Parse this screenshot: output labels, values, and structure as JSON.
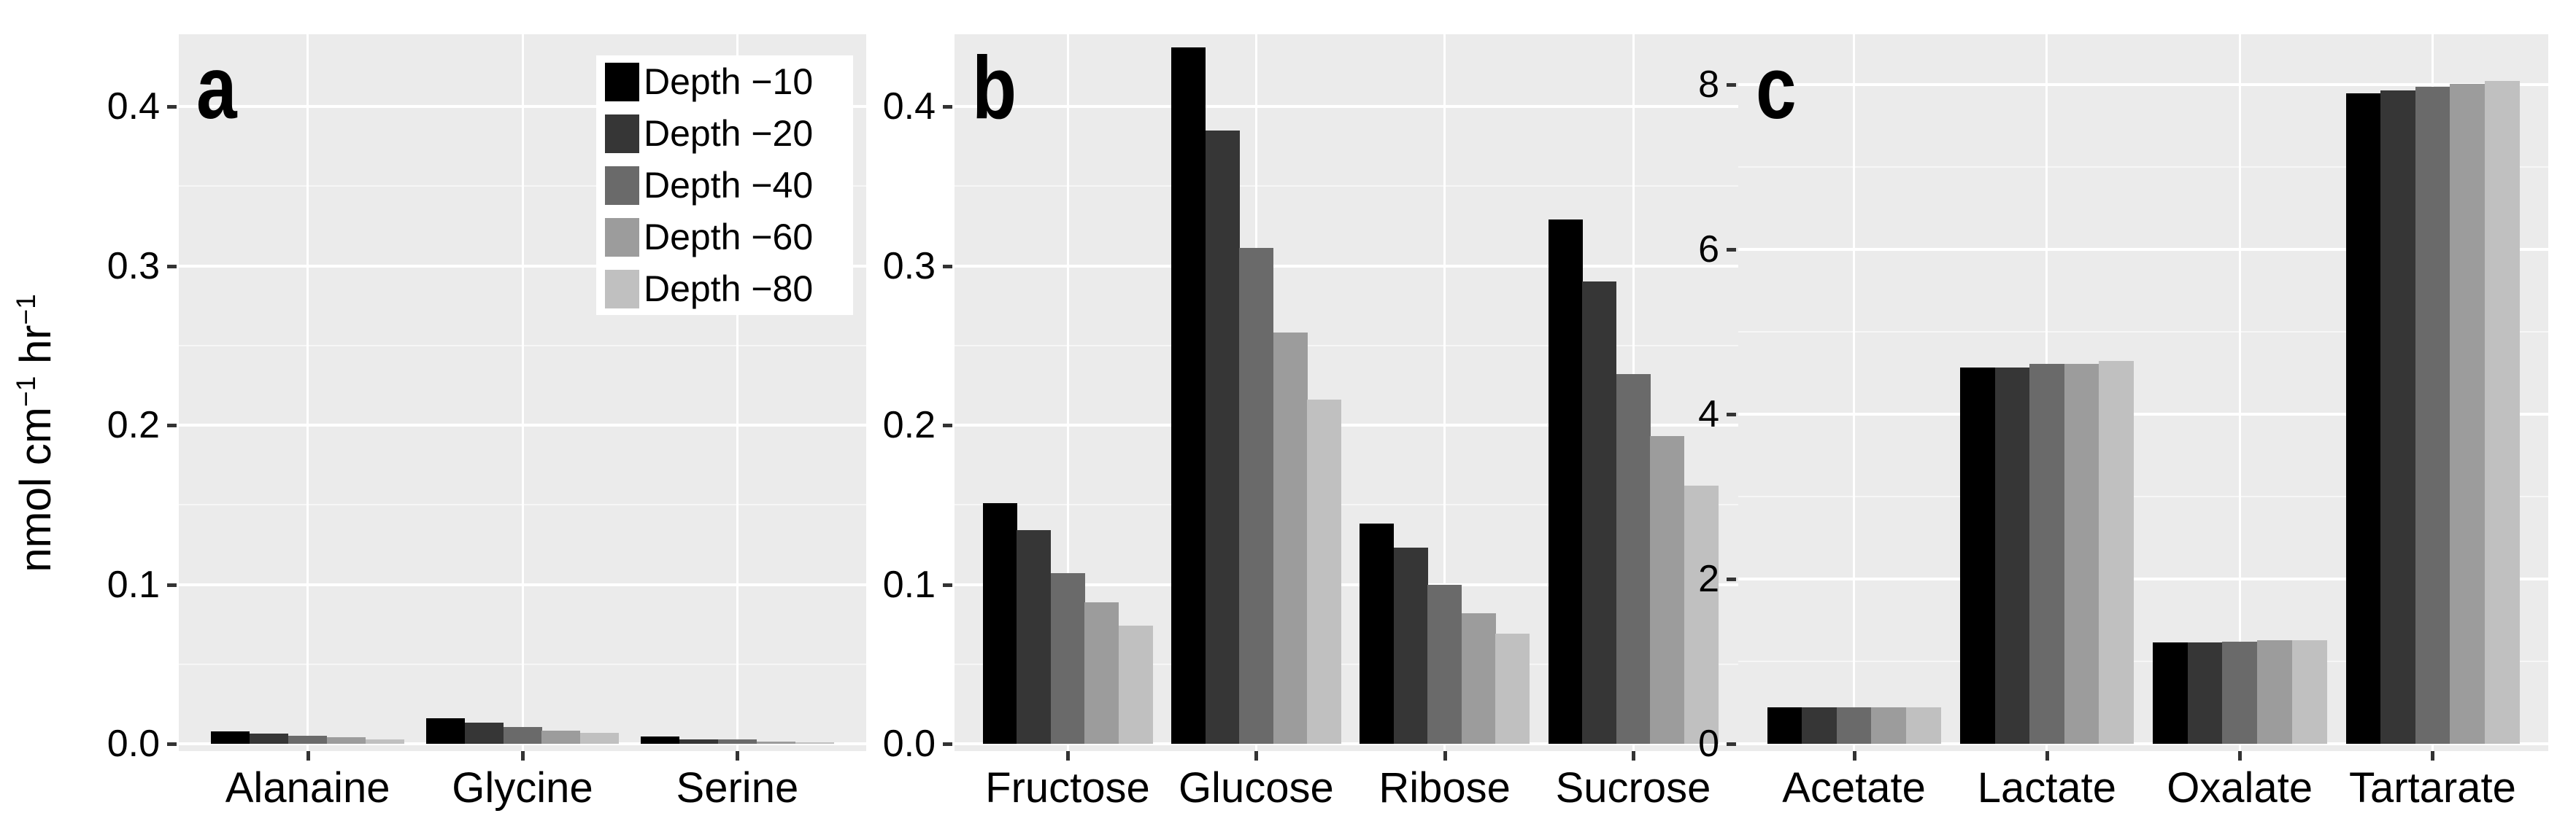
{
  "figure": {
    "background": "#FFFFFF",
    "panel_background": "#EBEBEB",
    "grid_major_color": "#FFFFFF",
    "grid_minor_color": "#F6F6F6",
    "series_colors": [
      "#000000",
      "#363636",
      "#6A6A6A",
      "#9C9C9C",
      "#C0C0C0"
    ]
  },
  "y_axis": {
    "title_parts": [
      {
        "text": "nmol cm"
      },
      {
        "text": "−1",
        "sup": true
      },
      {
        "text": " hr"
      },
      {
        "text": "−1",
        "sup": true
      }
    ]
  },
  "legend": {
    "items": [
      {
        "label": "Depth −10",
        "color": "#000000"
      },
      {
        "label": "Depth −20",
        "color": "#363636"
      },
      {
        "label": "Depth −40",
        "color": "#6A6A6A"
      },
      {
        "label": "Depth −60",
        "color": "#9C9C9C"
      },
      {
        "label": "Depth −80",
        "color": "#C0C0C0"
      }
    ]
  },
  "chart_data": [
    {
      "type": "bar",
      "panel_letter": "a",
      "title": "",
      "xlabel": "",
      "ylabel": "nmol cm−1 hr−1",
      "categories": [
        "Alanaine",
        "Glycine",
        "Serine"
      ],
      "series": [
        {
          "name": "Depth −10",
          "values": [
            0.008,
            0.0158,
            0.0048
          ]
        },
        {
          "name": "Depth −20",
          "values": [
            0.0065,
            0.0132,
            0.0028
          ]
        },
        {
          "name": "Depth −40",
          "values": [
            0.0052,
            0.0104,
            0.0026
          ]
        },
        {
          "name": "Depth −60",
          "values": [
            0.0041,
            0.0082,
            0.0015
          ]
        },
        {
          "name": "Depth −80",
          "values": [
            0.0028,
            0.0068,
            0.001
          ]
        }
      ],
      "ytick_labels": [
        "0.0",
        "0.1",
        "0.2",
        "0.3",
        "0.4"
      ],
      "ytick_values": [
        0,
        0.1,
        0.2,
        0.3,
        0.4
      ],
      "ylim": [
        0,
        0.445
      ],
      "grid": true,
      "legend_position": "inside-top-right"
    },
    {
      "type": "bar",
      "panel_letter": "b",
      "title": "",
      "xlabel": "",
      "ylabel": "",
      "categories": [
        "Fructose",
        "Glucose",
        "Ribose",
        "Sucrose"
      ],
      "series": [
        {
          "name": "Depth −10",
          "values": [
            0.151,
            0.437,
            0.138,
            0.329
          ]
        },
        {
          "name": "Depth −20",
          "values": [
            0.134,
            0.385,
            0.123,
            0.29
          ]
        },
        {
          "name": "Depth −40",
          "values": [
            0.107,
            0.311,
            0.1,
            0.232
          ]
        },
        {
          "name": "Depth −60",
          "values": [
            0.089,
            0.258,
            0.082,
            0.193
          ]
        },
        {
          "name": "Depth −80",
          "values": [
            0.074,
            0.216,
            0.069,
            0.162
          ]
        }
      ],
      "ytick_labels": [
        "0.0",
        "0.1",
        "0.2",
        "0.3",
        "0.4"
      ],
      "ytick_values": [
        0,
        0.1,
        0.2,
        0.3,
        0.4
      ],
      "ylim": [
        0,
        0.445
      ],
      "grid": true,
      "legend_position": "none"
    },
    {
      "type": "bar",
      "panel_letter": "c",
      "title": "",
      "xlabel": "",
      "ylabel": "",
      "categories": [
        "Acetate",
        "Lactate",
        "Oxalate",
        "Tartarate"
      ],
      "series": [
        {
          "name": "Depth −10",
          "values": [
            0.44,
            4.57,
            1.23,
            7.89
          ]
        },
        {
          "name": "Depth −20",
          "values": [
            0.44,
            4.57,
            1.23,
            7.93
          ]
        },
        {
          "name": "Depth −40",
          "values": [
            0.44,
            4.61,
            1.24,
            7.97
          ]
        },
        {
          "name": "Depth −60",
          "values": [
            0.44,
            4.61,
            1.26,
            8.01
          ]
        },
        {
          "name": "Depth −80",
          "values": [
            0.44,
            4.65,
            1.26,
            8.04
          ]
        }
      ],
      "ytick_labels": [
        "0",
        "2",
        "4",
        "6",
        "8"
      ],
      "ytick_values": [
        0,
        2,
        4,
        6,
        8
      ],
      "ylim": [
        0,
        8.6
      ],
      "grid": true,
      "legend_position": "none"
    }
  ]
}
